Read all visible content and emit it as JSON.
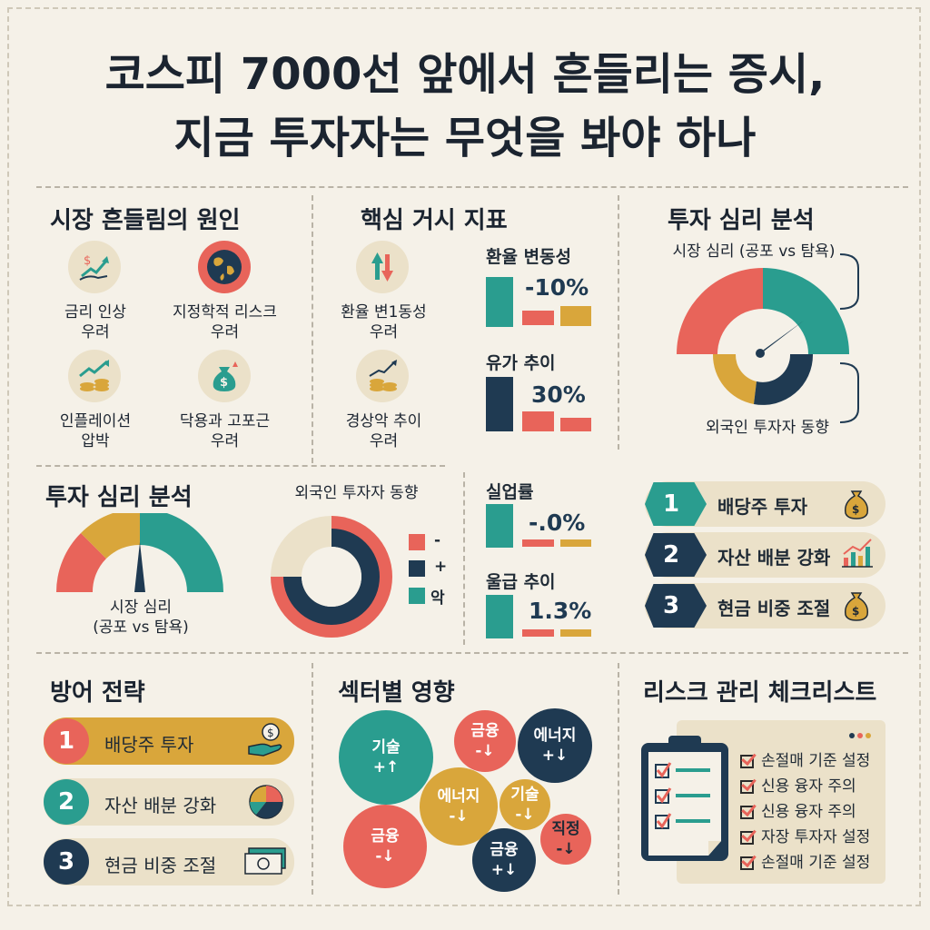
{
  "title": {
    "line1": "코스피 7000선 앞에서 흔들리는 증시,",
    "line2": "지금 투자자는 무엇을 봐야 하나"
  },
  "causes": {
    "heading": "시장 흔들림의 원인",
    "items": [
      {
        "label": "금리 인상\n우려",
        "icon": "rate-hike-icon"
      },
      {
        "label": "지정학적 리스크\n우려",
        "icon": "globe-icon"
      },
      {
        "label": "인플레이션\n압박",
        "icon": "inflation-chart-icon"
      },
      {
        "label": "닥용과 고포근\n우려",
        "icon": "money-bag-icon"
      }
    ]
  },
  "macro": {
    "heading": "핵심 거시 지표",
    "items": [
      {
        "label": "환율 변1동성\n우려",
        "icon": "exchange-arrows-icon"
      },
      {
        "label": "경상악 추이\n우려",
        "icon": "coins-growth-icon"
      }
    ]
  },
  "indicators": [
    {
      "label": "환율 변동성",
      "value": "-10%"
    },
    {
      "label": "유가 추이",
      "value": "30%"
    },
    {
      "label": "실업률",
      "value": "-.0%"
    },
    {
      "label": "울급 추이",
      "value": "1.3%"
    }
  ],
  "sentiment_right": {
    "heading": "투자 심리 분석",
    "gauge_label": "시장 심리 (공포 vs 탐욕)",
    "foreign_label": "외국인 투자자 동향"
  },
  "sentiment_left": {
    "heading": "투자 심리 분석",
    "gauge_label": "시장 심리\n(공포 vs 탐욕)",
    "donut_title": "외국인 투자자 동향",
    "legend": [
      {
        "label": "-",
        "color": "#e8645a"
      },
      {
        "label": "+",
        "color": "#1f3a52"
      },
      {
        "label": "악",
        "color": "#2a9d8f"
      }
    ]
  },
  "chevron_list": [
    {
      "num": "1",
      "label": "배당주 투자",
      "icon": "money-bag-icon",
      "color": "#2a9d8f"
    },
    {
      "num": "2",
      "label": "자산 배분 강화",
      "icon": "bar-chart-icon",
      "color": "#1f3a52"
    },
    {
      "num": "3",
      "label": "현금 비중 조절",
      "icon": "money-bag-icon",
      "color": "#1f3a52"
    }
  ],
  "defense": {
    "heading": "방어 전략",
    "items": [
      {
        "num": "1",
        "label": "배당주 투자",
        "icon": "dividend-hand-icon"
      },
      {
        "num": "2",
        "label": "자산 배분 강화",
        "icon": "pie-chart-icon"
      },
      {
        "num": "3",
        "label": "현금 비중 조절",
        "icon": "cash-bill-icon"
      }
    ]
  },
  "sectors": {
    "heading": "섹터별 영향",
    "bubbles": [
      {
        "name": "기술",
        "sign": "+↑"
      },
      {
        "name": "금융",
        "sign": "-↓"
      },
      {
        "name": "에너지",
        "sign": "+↓"
      },
      {
        "name": "에너지",
        "sign": "-↓"
      },
      {
        "name": "기술",
        "sign": "-↓"
      },
      {
        "name": "금융",
        "sign": "-↓"
      },
      {
        "name": "금융",
        "sign": "+↓"
      },
      {
        "name": "직정",
        "sign": "-↓"
      }
    ]
  },
  "checklist": {
    "heading": "리스크 관리 체크리스트",
    "items": [
      "손절매 기준 설정",
      "신용 융자 주의",
      "신용 융자 주의",
      "자장 투자자 설정",
      "손절매 기준 설정"
    ]
  },
  "colors": {
    "coral": "#e8645a",
    "teal": "#2a9d8f",
    "navy": "#1f3a52",
    "mustard": "#d9a63b",
    "cream": "#ebe1c9"
  }
}
